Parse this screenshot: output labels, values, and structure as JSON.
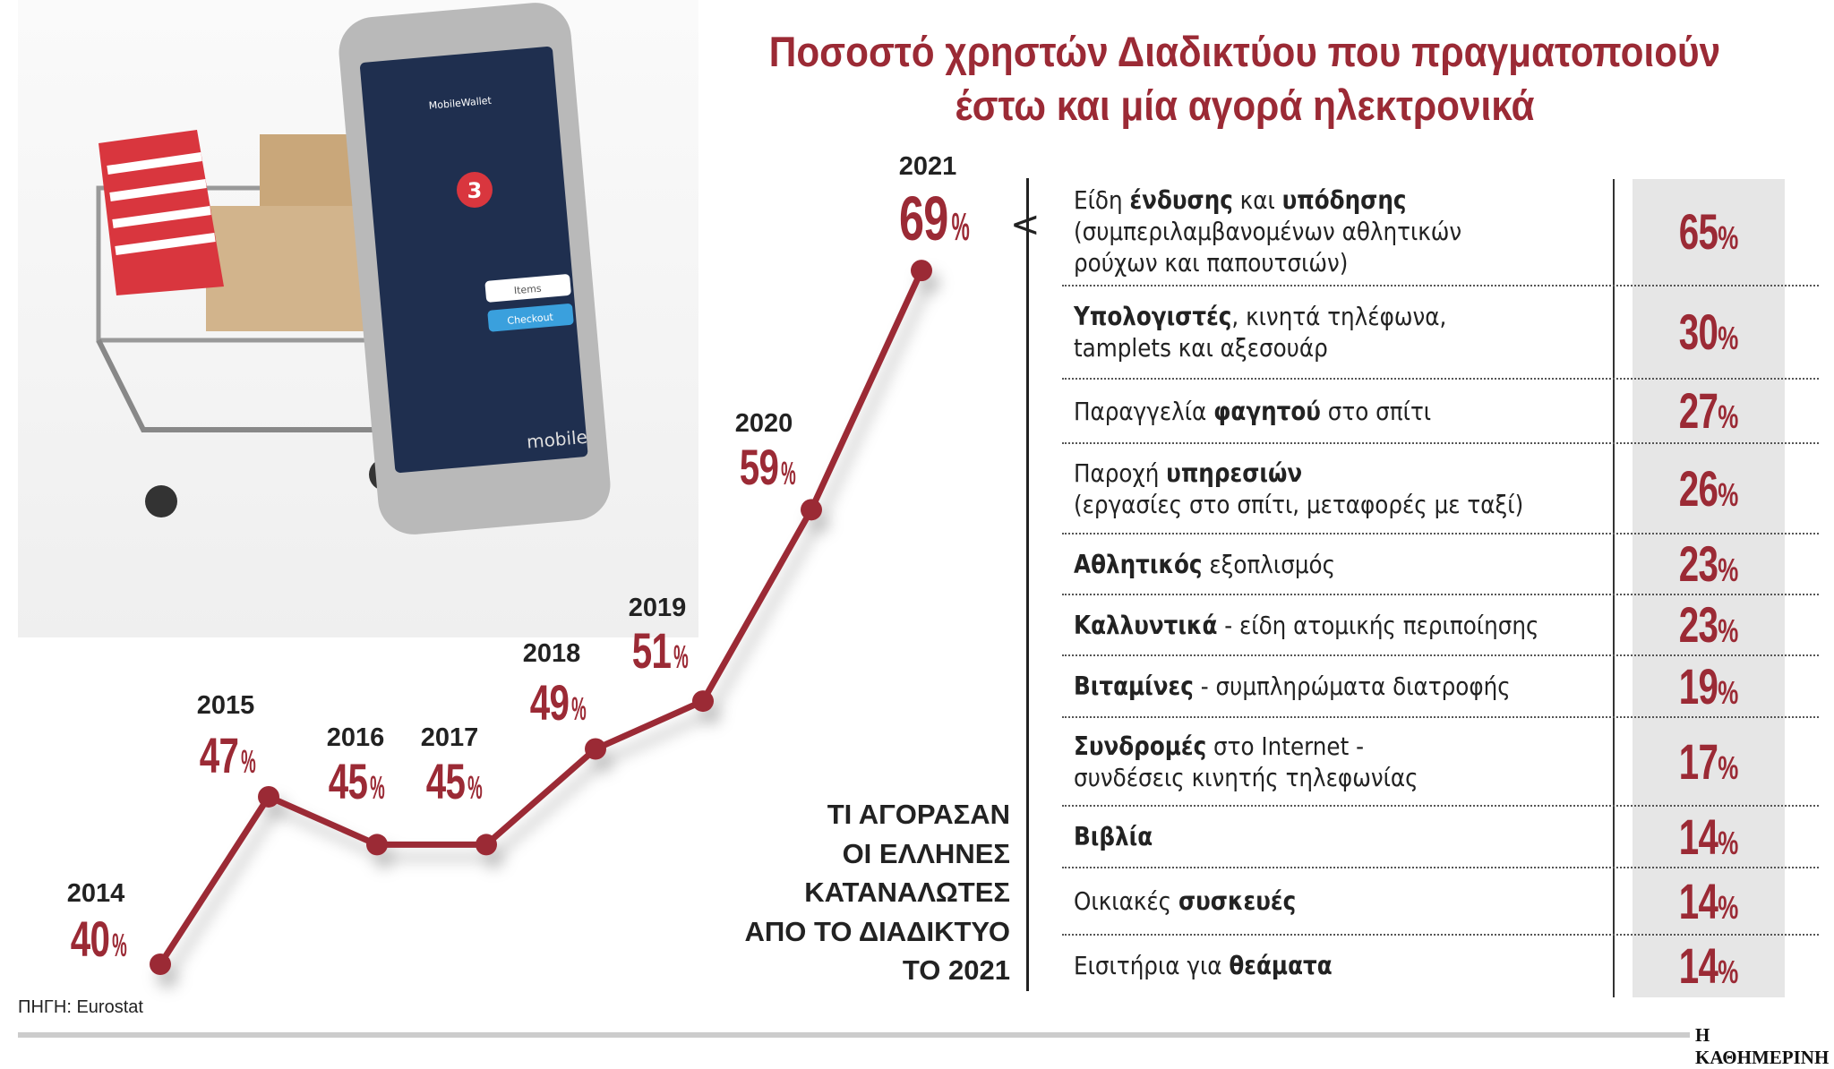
{
  "title": [
    "Ποσοστό χρηστών Διαδικτύου που πραγματοποιούν",
    "έστω και μία αγορά ηλεκτρονικά"
  ],
  "photo": {
    "phone_text": [
      "MobileWallet",
      "Items",
      "Checkout",
      "mobile",
      "3"
    ]
  },
  "chart_data": {
    "type": "line",
    "categories": [
      "2014",
      "2015",
      "2016",
      "2017",
      "2018",
      "2019",
      "2020",
      "2021"
    ],
    "values": [
      40,
      47,
      45,
      45,
      49,
      51,
      59,
      69
    ],
    "labels": [
      "40%",
      "47%",
      "45%",
      "45%",
      "49%",
      "51%",
      "59%",
      "69%"
    ],
    "unit": "%",
    "color": "#9b2a35"
  },
  "caption": [
    "ΤΙ ΑΓΟΡΑΣΑΝ",
    "ΟΙ ΕΛΛΗΝΕΣ",
    "ΚΑΤΑΝΑΛΩΤΕΣ",
    "ΑΠΟ ΤΟ ΔΙΑΔΙΚΤΥΟ",
    "ΤΟ 2021"
  ],
  "table": {
    "type": "table",
    "rows": [
      {
        "lines": [
          [
            [
              "Είδη ",
              0
            ],
            [
              "ένδυσης",
              1
            ],
            [
              " και ",
              0
            ],
            [
              "υπόδησης",
              1
            ]
          ],
          [
            [
              "(συμπεριλαμβανομένων αθλητικών",
              0
            ]
          ],
          [
            [
              "ρούχων και παπουτσιών)",
              0
            ]
          ]
        ],
        "value": 65
      },
      {
        "lines": [
          [
            [
              "Υπολογιστές",
              1
            ],
            [
              ", κινητά τηλέφωνα,",
              0
            ]
          ],
          [
            [
              "tamplets και αξεσουάρ",
              0
            ]
          ]
        ],
        "value": 30
      },
      {
        "lines": [
          [
            [
              "Παραγγελία ",
              0
            ],
            [
              "φαγητού",
              1
            ],
            [
              " στο σπίτι",
              0
            ]
          ]
        ],
        "value": 27
      },
      {
        "lines": [
          [
            [
              "Παροχή ",
              0
            ],
            [
              "υπηρεσιών",
              1
            ]
          ],
          [
            [
              "(εργασίες στο σπίτι, μεταφορές με ταξί)",
              0
            ]
          ]
        ],
        "value": 26
      },
      {
        "lines": [
          [
            [
              "Αθλητικός",
              1
            ],
            [
              " εξοπλισμός",
              0
            ]
          ]
        ],
        "value": 23
      },
      {
        "lines": [
          [
            [
              "Καλλυντικά",
              1
            ],
            [
              " - είδη ατομικής περιποίησης",
              0
            ]
          ]
        ],
        "value": 23
      },
      {
        "lines": [
          [
            [
              "Βιταμίνες",
              1
            ],
            [
              " - συμπληρώματα διατροφής",
              0
            ]
          ]
        ],
        "value": 19
      },
      {
        "lines": [
          [
            [
              "Συνδρομές",
              1
            ],
            [
              " στο Internet -",
              0
            ]
          ],
          [
            [
              "συνδέσεις κινητής τηλεφωνίας",
              0
            ]
          ]
        ],
        "value": 17
      },
      {
        "lines": [
          [
            [
              "Βιβλία",
              1
            ]
          ]
        ],
        "value": 14
      },
      {
        "lines": [
          [
            [
              "Οικιακές ",
              0
            ],
            [
              "συσκευές",
              1
            ]
          ]
        ],
        "value": 14
      },
      {
        "lines": [
          [
            [
              "Εισιτήρια για ",
              0
            ],
            [
              "θεάματα",
              1
            ]
          ]
        ],
        "value": 14
      }
    ]
  },
  "source": "ΠΗΓΗ: Eurostat",
  "brand": "Η ΚΑΘΗΜΕΡΙΝΗ"
}
